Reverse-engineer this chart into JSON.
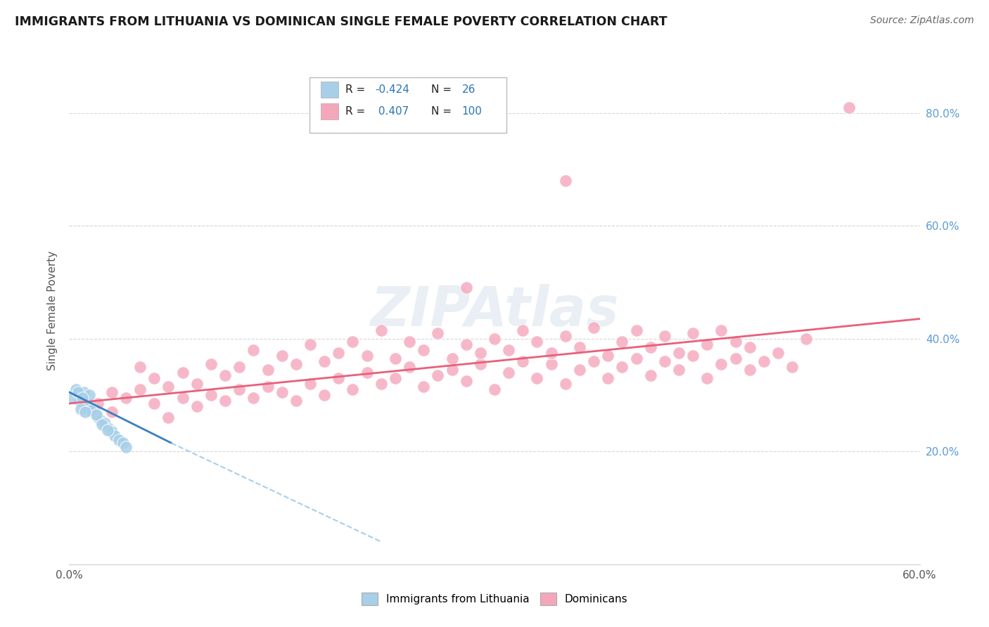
{
  "title": "IMMIGRANTS FROM LITHUANIA VS DOMINICAN SINGLE FEMALE POVERTY CORRELATION CHART",
  "source": "Source: ZipAtlas.com",
  "ylabel": "Single Female Poverty",
  "right_yticks": [
    "20.0%",
    "40.0%",
    "60.0%",
    "80.0%"
  ],
  "right_ytick_values": [
    0.2,
    0.4,
    0.6,
    0.8
  ],
  "xlim": [
    0.0,
    0.6
  ],
  "ylim": [
    0.0,
    0.9
  ],
  "blue_color": "#a8cfe8",
  "pink_color": "#f4a7bb",
  "blue_line_color": "#3a7ebf",
  "blue_line_dashed_color": "#a8cfe8",
  "pink_line_color": "#e8607a",
  "title_color": "#1a1a1a",
  "source_color": "#666666",
  "watermark": "ZIPAtlas",
  "lithuania_points": [
    [
      0.005,
      0.31
    ],
    [
      0.007,
      0.29
    ],
    [
      0.01,
      0.305
    ],
    [
      0.012,
      0.285
    ],
    [
      0.014,
      0.3
    ],
    [
      0.016,
      0.275
    ],
    [
      0.018,
      0.27
    ],
    [
      0.02,
      0.26
    ],
    [
      0.022,
      0.255
    ],
    [
      0.025,
      0.25
    ],
    [
      0.028,
      0.24
    ],
    [
      0.03,
      0.235
    ],
    [
      0.032,
      0.228
    ],
    [
      0.035,
      0.22
    ],
    [
      0.038,
      0.215
    ],
    [
      0.04,
      0.208
    ],
    [
      0.003,
      0.295
    ],
    [
      0.006,
      0.305
    ],
    [
      0.009,
      0.295
    ],
    [
      0.013,
      0.28
    ],
    [
      0.015,
      0.273
    ],
    [
      0.019,
      0.265
    ],
    [
      0.023,
      0.248
    ],
    [
      0.027,
      0.238
    ],
    [
      0.008,
      0.275
    ],
    [
      0.011,
      0.27
    ]
  ],
  "dominican_points": [
    [
      0.02,
      0.285
    ],
    [
      0.03,
      0.27
    ],
    [
      0.03,
      0.305
    ],
    [
      0.04,
      0.295
    ],
    [
      0.05,
      0.31
    ],
    [
      0.05,
      0.35
    ],
    [
      0.06,
      0.285
    ],
    [
      0.06,
      0.33
    ],
    [
      0.07,
      0.26
    ],
    [
      0.07,
      0.315
    ],
    [
      0.08,
      0.295
    ],
    [
      0.08,
      0.34
    ],
    [
      0.09,
      0.28
    ],
    [
      0.09,
      0.32
    ],
    [
      0.1,
      0.3
    ],
    [
      0.1,
      0.355
    ],
    [
      0.11,
      0.29
    ],
    [
      0.11,
      0.335
    ],
    [
      0.12,
      0.31
    ],
    [
      0.12,
      0.35
    ],
    [
      0.13,
      0.295
    ],
    [
      0.13,
      0.38
    ],
    [
      0.14,
      0.315
    ],
    [
      0.14,
      0.345
    ],
    [
      0.15,
      0.305
    ],
    [
      0.15,
      0.37
    ],
    [
      0.16,
      0.29
    ],
    [
      0.16,
      0.355
    ],
    [
      0.17,
      0.32
    ],
    [
      0.17,
      0.39
    ],
    [
      0.18,
      0.3
    ],
    [
      0.18,
      0.36
    ],
    [
      0.19,
      0.33
    ],
    [
      0.19,
      0.375
    ],
    [
      0.2,
      0.31
    ],
    [
      0.2,
      0.395
    ],
    [
      0.21,
      0.34
    ],
    [
      0.21,
      0.37
    ],
    [
      0.22,
      0.32
    ],
    [
      0.22,
      0.415
    ],
    [
      0.23,
      0.33
    ],
    [
      0.23,
      0.365
    ],
    [
      0.24,
      0.35
    ],
    [
      0.24,
      0.395
    ],
    [
      0.25,
      0.315
    ],
    [
      0.25,
      0.38
    ],
    [
      0.26,
      0.335
    ],
    [
      0.26,
      0.41
    ],
    [
      0.27,
      0.345
    ],
    [
      0.27,
      0.365
    ],
    [
      0.28,
      0.325
    ],
    [
      0.28,
      0.39
    ],
    [
      0.29,
      0.355
    ],
    [
      0.29,
      0.375
    ],
    [
      0.3,
      0.31
    ],
    [
      0.3,
      0.4
    ],
    [
      0.31,
      0.34
    ],
    [
      0.31,
      0.38
    ],
    [
      0.32,
      0.36
    ],
    [
      0.32,
      0.415
    ],
    [
      0.33,
      0.33
    ],
    [
      0.33,
      0.395
    ],
    [
      0.34,
      0.355
    ],
    [
      0.34,
      0.375
    ],
    [
      0.35,
      0.32
    ],
    [
      0.35,
      0.405
    ],
    [
      0.36,
      0.345
    ],
    [
      0.36,
      0.385
    ],
    [
      0.37,
      0.36
    ],
    [
      0.37,
      0.42
    ],
    [
      0.38,
      0.33
    ],
    [
      0.38,
      0.37
    ],
    [
      0.39,
      0.35
    ],
    [
      0.39,
      0.395
    ],
    [
      0.4,
      0.365
    ],
    [
      0.4,
      0.415
    ],
    [
      0.41,
      0.335
    ],
    [
      0.41,
      0.385
    ],
    [
      0.42,
      0.36
    ],
    [
      0.42,
      0.405
    ],
    [
      0.43,
      0.345
    ],
    [
      0.43,
      0.375
    ],
    [
      0.44,
      0.37
    ],
    [
      0.44,
      0.41
    ],
    [
      0.45,
      0.33
    ],
    [
      0.45,
      0.39
    ],
    [
      0.46,
      0.355
    ],
    [
      0.46,
      0.415
    ],
    [
      0.47,
      0.365
    ],
    [
      0.47,
      0.395
    ],
    [
      0.48,
      0.345
    ],
    [
      0.48,
      0.385
    ],
    [
      0.49,
      0.36
    ],
    [
      0.5,
      0.375
    ],
    [
      0.51,
      0.35
    ],
    [
      0.52,
      0.4
    ],
    [
      0.28,
      0.49
    ],
    [
      0.35,
      0.68
    ],
    [
      0.55,
      0.81
    ]
  ]
}
